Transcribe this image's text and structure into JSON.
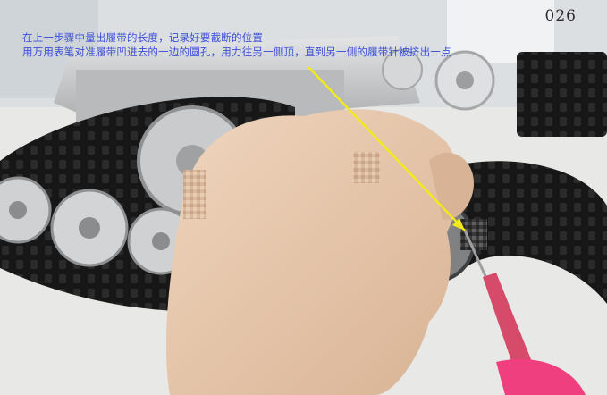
{
  "caption": {
    "line1": "在上一步骤中量出履带的长度，记录好要截断的位置",
    "line2": "用万用表笔对准履带凹进去的一边的圆孔，用力往另一侧顶，直到另一侧的履带针被挤出一点"
  },
  "page_number": "026",
  "colors": {
    "caption_text": "#3b4fd8",
    "arrow": "#f2ea1a",
    "track": "#151515",
    "probe": "#d64a6a",
    "metal": "#c2c4c6",
    "skin": "#e3c2a4"
  }
}
